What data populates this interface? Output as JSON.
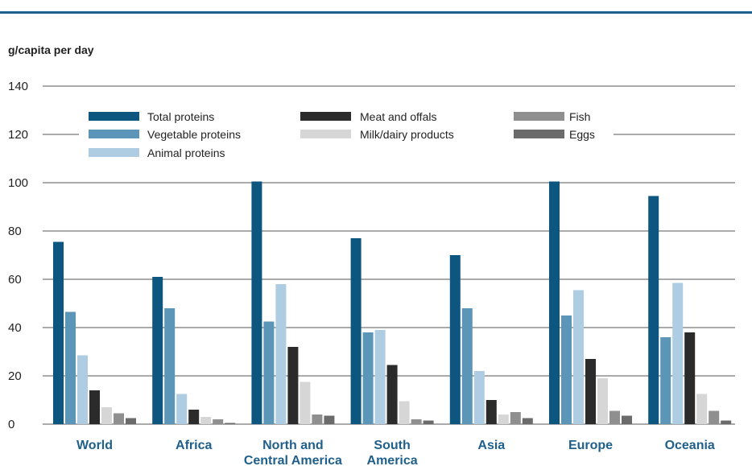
{
  "chart_data": {
    "type": "bar",
    "ylabel": "g/capita per day",
    "ylim": [
      0,
      140
    ],
    "yticks": [
      0,
      20,
      40,
      60,
      80,
      100,
      120,
      140
    ],
    "grid": true,
    "legend_position": "top",
    "categories": [
      [
        "World"
      ],
      [
        "Africa"
      ],
      [
        "North and",
        "Central America"
      ],
      [
        "South",
        "America"
      ],
      [
        "Asia"
      ],
      [
        "Europe"
      ],
      [
        "Oceania"
      ]
    ],
    "series": [
      {
        "name": "Total proteins",
        "color": "#0d5680",
        "values": [
          75.5,
          61,
          100.5,
          77,
          70,
          100.5,
          94.5
        ]
      },
      {
        "name": "Vegetable proteins",
        "color": "#5b96b9",
        "values": [
          46.5,
          48,
          42.5,
          38,
          48,
          45,
          36
        ]
      },
      {
        "name": "Animal proteins",
        "color": "#aecde3",
        "values": [
          28.5,
          12.5,
          58,
          39,
          22,
          55.5,
          58.5
        ]
      },
      {
        "name": "Meat and offals",
        "color": "#2b2b2b",
        "values": [
          14,
          6,
          32,
          24.5,
          10,
          27,
          38
        ]
      },
      {
        "name": "Milk/dairy products",
        "color": "#d6d6d6",
        "values": [
          7,
          3,
          17.5,
          9.5,
          4,
          19,
          12.5
        ]
      },
      {
        "name": "Fish",
        "color": "#8f8f8f",
        "values": [
          4.5,
          2,
          4,
          2,
          5,
          5.5,
          5.5
        ]
      },
      {
        "name": "Eggs",
        "color": "#6b6b6b",
        "values": [
          2.5,
          0.5,
          3.5,
          1.5,
          2.5,
          3.5,
          1.5
        ]
      }
    ]
  }
}
